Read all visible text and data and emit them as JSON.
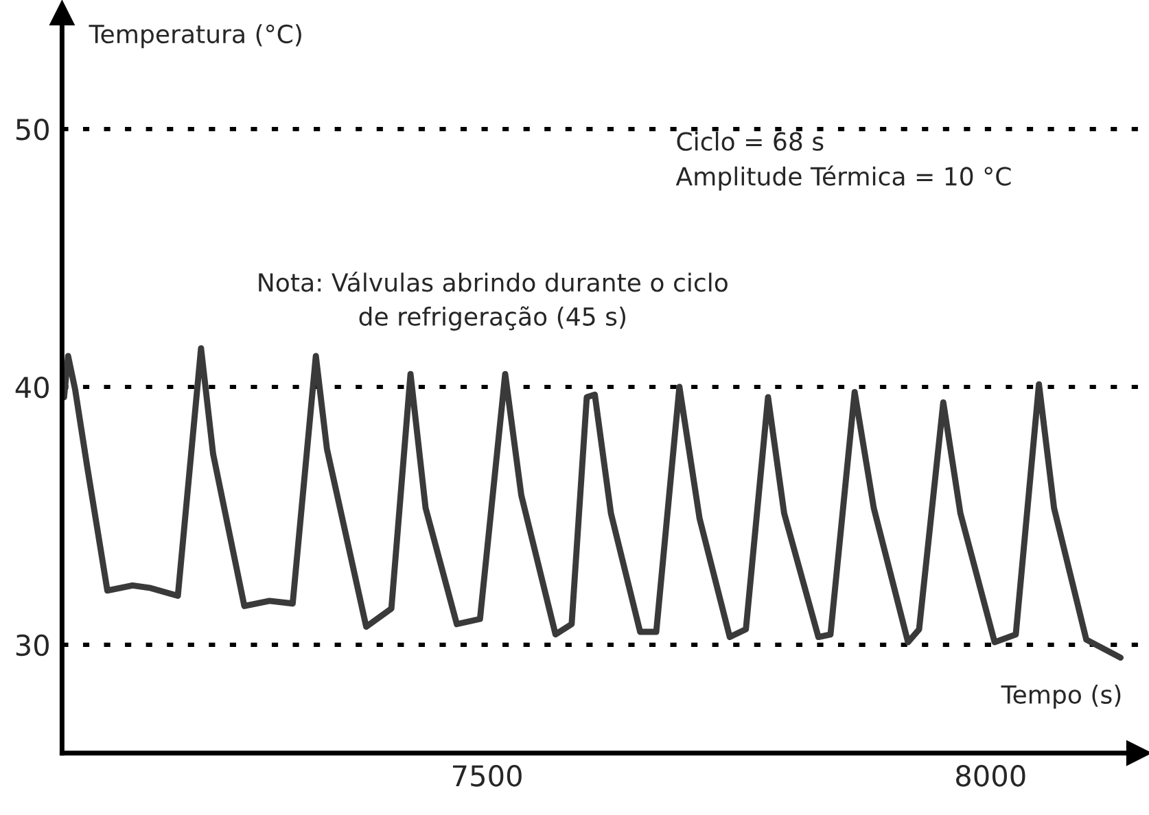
{
  "chart_data": {
    "type": "line",
    "xlabel": "Tempo (s)",
    "ylabel": "Temperatura (°C)",
    "annotations": [
      "Ciclo = 68 s\nAmplitude Térmica = 10 °C",
      "Nota: Válvulas abrindo durante o ciclo\nde refrigeração (45 s)"
    ],
    "series": [
      {
        "color": "#3a3a3a",
        "x": [
          7080,
          7084,
          7091,
          7103,
          7123,
          7148,
          7166,
          7193,
          7216,
          7228,
          7259,
          7284,
          7307,
          7330,
          7341,
          7380,
          7405,
          7424,
          7439,
          7470,
          7493,
          7518,
          7534,
          7568,
          7584,
          7599,
          7607,
          7623,
          7652,
          7668,
          7691,
          7711,
          7741,
          7757,
          7779,
          7795,
          7829,
          7841,
          7865,
          7884,
          7918,
          7929,
          7953,
          7970,
          8004,
          8025,
          8048,
          8063,
          8095,
          8129
        ],
        "values": [
          39.6,
          41.2,
          39.9,
          36.9,
          32.1,
          32.3,
          32.2,
          31.9,
          41.5,
          37.4,
          31.5,
          31.7,
          31.6,
          41.2,
          37.6,
          30.7,
          31.4,
          40.5,
          35.3,
          30.8,
          31.0,
          40.5,
          35.8,
          30.4,
          30.8,
          39.6,
          39.7,
          35.1,
          30.5,
          30.5,
          40.0,
          34.9,
          30.3,
          30.6,
          39.6,
          35.1,
          30.3,
          30.4,
          39.8,
          35.3,
          30.1,
          30.6,
          39.4,
          35.1,
          30.1,
          30.4,
          40.1,
          35.3,
          30.2,
          29.5
        ]
      }
    ],
    "xlim": [
      7078,
      8147
    ],
    "ylim": [
      25.8,
      54.5
    ],
    "xticks": [
      7500,
      8000
    ],
    "yticks": [
      30,
      40,
      50
    ],
    "ref_lines": [
      {
        "axis": "y",
        "value": 30,
        "color": "#000000",
        "line_style": "dotted"
      },
      {
        "axis": "y",
        "value": 40,
        "color": "#000000",
        "line_style": "dotted"
      },
      {
        "axis": "y",
        "value": 50,
        "color": "#000000",
        "line_style": "dotted"
      }
    ],
    "grid": false,
    "legend": false,
    "marker": "none",
    "line_style": "solid"
  }
}
